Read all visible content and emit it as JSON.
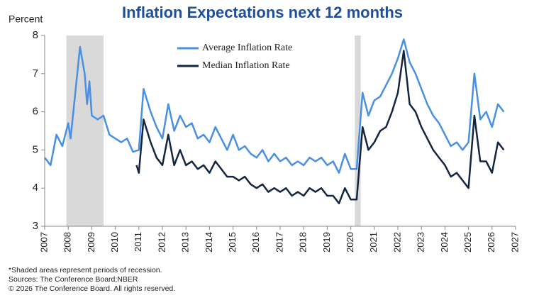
{
  "chart_data": {
    "type": "line",
    "title": "Inflation Expectations next 12 months",
    "y_label": "Percent",
    "xlim": [
      2007,
      2027
    ],
    "xticks": [
      2007,
      2008,
      2009,
      2010,
      2011,
      2012,
      2013,
      2014,
      2015,
      2016,
      2017,
      2018,
      2019,
      2020,
      2021,
      2022,
      2023,
      2024,
      2025,
      2026,
      2027
    ],
    "ylim": [
      3,
      8
    ],
    "yticks": [
      3,
      4,
      5,
      6,
      7,
      8
    ],
    "grid": false,
    "legend": "top-center",
    "recessions": [
      [
        2007.92,
        2009.5
      ],
      [
        2020.17,
        2020.42
      ]
    ],
    "recession_color": "#d9d9d9",
    "series": [
      {
        "name": "Average Inflation Rate",
        "color": "#4a90e2",
        "x": [
          2007.0,
          2007.25,
          2007.5,
          2007.75,
          2008.0,
          2008.1,
          2008.3,
          2008.5,
          2008.7,
          2008.8,
          2008.9,
          2009.0,
          2009.25,
          2009.5,
          2009.75,
          2010.0,
          2010.25,
          2010.5,
          2010.75,
          2011.0,
          2011.2,
          2011.5,
          2011.75,
          2012.0,
          2012.25,
          2012.5,
          2012.75,
          2013.0,
          2013.25,
          2013.5,
          2013.75,
          2014.0,
          2014.25,
          2014.5,
          2014.75,
          2015.0,
          2015.25,
          2015.5,
          2015.75,
          2016.0,
          2016.25,
          2016.5,
          2016.75,
          2017.0,
          2017.25,
          2017.5,
          2017.75,
          2018.0,
          2018.25,
          2018.5,
          2018.75,
          2019.0,
          2019.25,
          2019.5,
          2019.75,
          2020.0,
          2020.25,
          2020.5,
          2020.75,
          2021.0,
          2021.25,
          2021.5,
          2021.75,
          2022.0,
          2022.25,
          2022.5,
          2022.75,
          2023.0,
          2023.25,
          2023.5,
          2023.75,
          2024.0,
          2024.25,
          2024.5,
          2024.75,
          2025.0,
          2025.25,
          2025.5,
          2025.75,
          2026.0,
          2026.25,
          2026.5
        ],
        "values": [
          4.8,
          4.6,
          5.4,
          5.1,
          5.7,
          5.3,
          6.5,
          7.7,
          7.0,
          6.2,
          6.8,
          5.9,
          5.8,
          5.9,
          5.4,
          5.3,
          5.2,
          5.3,
          4.95,
          5.0,
          6.6,
          6.0,
          5.6,
          5.3,
          6.2,
          5.5,
          5.9,
          5.6,
          5.7,
          5.3,
          5.4,
          5.2,
          5.6,
          5.3,
          5.0,
          5.4,
          5.0,
          5.1,
          4.9,
          4.8,
          5.0,
          4.7,
          4.9,
          4.7,
          4.8,
          4.6,
          4.7,
          4.6,
          4.8,
          4.7,
          4.8,
          4.6,
          4.7,
          4.4,
          4.9,
          4.5,
          4.5,
          6.5,
          5.9,
          6.3,
          6.4,
          6.7,
          7.0,
          7.4,
          7.9,
          7.3,
          7.0,
          6.6,
          6.2,
          5.9,
          5.7,
          5.4,
          5.1,
          5.2,
          5.0,
          5.2,
          7.0,
          5.8,
          6.0,
          5.6,
          6.2,
          6.0
        ]
      },
      {
        "name": "Median Inflation Rate",
        "color": "#14263f",
        "x": [
          2010.9,
          2011.0,
          2011.2,
          2011.5,
          2011.75,
          2012.0,
          2012.25,
          2012.5,
          2012.75,
          2013.0,
          2013.25,
          2013.5,
          2013.75,
          2014.0,
          2014.25,
          2014.5,
          2014.75,
          2015.0,
          2015.25,
          2015.5,
          2015.75,
          2016.0,
          2016.25,
          2016.5,
          2016.75,
          2017.0,
          2017.25,
          2017.5,
          2017.75,
          2018.0,
          2018.25,
          2018.5,
          2018.75,
          2019.0,
          2019.25,
          2019.5,
          2019.75,
          2020.0,
          2020.25,
          2020.5,
          2020.75,
          2021.0,
          2021.25,
          2021.5,
          2021.75,
          2022.0,
          2022.25,
          2022.5,
          2022.75,
          2023.0,
          2023.25,
          2023.5,
          2023.75,
          2024.0,
          2024.25,
          2024.5,
          2024.75,
          2025.0,
          2025.25,
          2025.5,
          2025.75,
          2026.0,
          2026.25,
          2026.5
        ],
        "values": [
          4.6,
          4.4,
          5.8,
          5.2,
          4.8,
          4.6,
          5.4,
          4.6,
          5.0,
          4.6,
          4.7,
          4.5,
          4.6,
          4.4,
          4.7,
          4.5,
          4.3,
          4.3,
          4.2,
          4.3,
          4.1,
          4.0,
          4.1,
          3.9,
          4.0,
          3.9,
          4.0,
          3.8,
          3.9,
          3.8,
          4.0,
          3.9,
          4.0,
          3.8,
          3.8,
          3.6,
          4.0,
          3.7,
          3.7,
          5.6,
          5.0,
          5.2,
          5.5,
          5.6,
          6.0,
          6.5,
          7.6,
          6.2,
          6.0,
          5.6,
          5.3,
          5.0,
          4.8,
          4.6,
          4.3,
          4.4,
          4.2,
          4.0,
          5.9,
          4.7,
          4.7,
          4.4,
          5.2,
          5.0
        ]
      }
    ],
    "notes": [
      "*Shaded areas represent periods of recession.",
      "Sources: The Conference Board;NBER",
      "© 2026 The Conference Board. All rights reserved."
    ]
  }
}
